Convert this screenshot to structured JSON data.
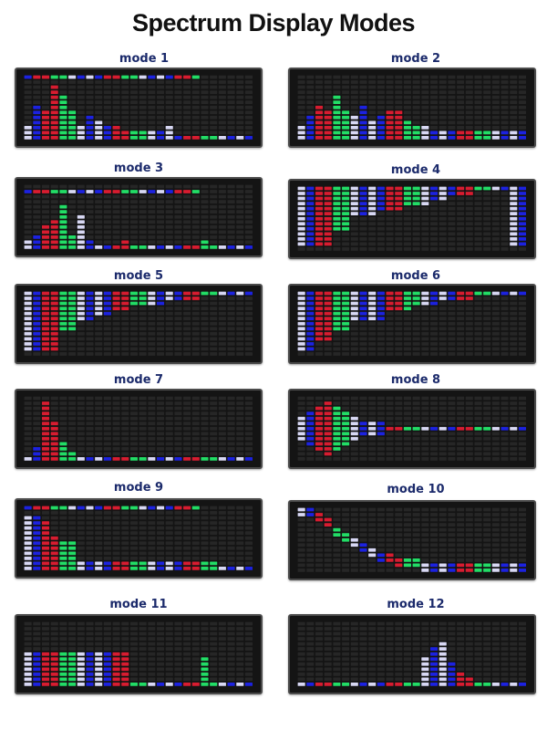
{
  "page": {
    "title": "Spectrum Display Modes"
  },
  "palette": {
    "white": "#d8d8f4",
    "blue": "#1c22e0",
    "red": "#d81c30",
    "green": "#22dd66",
    "off": "#262626"
  },
  "panels": [
    {
      "label": "mode 1",
      "style": "bars",
      "heights": [
        3,
        7,
        6,
        11,
        9,
        6,
        3,
        5,
        4,
        3,
        3,
        2,
        2,
        2,
        2,
        2,
        3,
        1,
        1,
        1,
        1,
        1,
        1,
        1,
        1,
        1
      ],
      "peak_row": 12
    },
    {
      "label": "mode 2",
      "style": "bars_with_row",
      "heights": [
        3,
        5,
        7,
        6,
        9,
        6,
        5,
        7,
        4,
        5,
        6,
        6,
        4,
        3,
        3,
        2,
        2,
        2,
        1,
        1,
        1,
        1,
        1,
        1,
        1,
        1
      ],
      "row_level": 1
    },
    {
      "label": "mode 3",
      "style": "bars",
      "heights": [
        2,
        3,
        5,
        6,
        9,
        3,
        7,
        2,
        1,
        1,
        1,
        2,
        1,
        1,
        1,
        1,
        1,
        1,
        1,
        1,
        2,
        1,
        1,
        1,
        1,
        1
      ],
      "peak_row": 11
    },
    {
      "label": "mode 4",
      "style": "mirror",
      "heights": [
        12,
        12,
        12,
        12,
        9,
        9,
        6,
        6,
        6,
        5,
        5,
        5,
        4,
        4,
        4,
        3,
        3,
        2,
        2,
        2,
        1,
        1,
        1,
        1,
        12,
        12
      ]
    },
    {
      "label": "mode 5",
      "style": "mirror",
      "heights": [
        12,
        12,
        12,
        12,
        8,
        8,
        6,
        6,
        5,
        5,
        4,
        4,
        3,
        3,
        3,
        3,
        2,
        2,
        2,
        2,
        1,
        1,
        1,
        1,
        1,
        1
      ]
    },
    {
      "label": "mode 6",
      "style": "mirror",
      "heights": [
        12,
        12,
        10,
        10,
        8,
        8,
        6,
        6,
        6,
        6,
        4,
        4,
        4,
        3,
        3,
        3,
        2,
        2,
        2,
        2,
        1,
        1,
        1,
        1,
        1,
        1
      ]
    },
    {
      "label": "mode 7",
      "style": "bars",
      "heights": [
        1,
        3,
        12,
        8,
        4,
        2,
        1,
        1,
        1,
        1,
        1,
        1,
        1,
        1,
        1,
        1,
        1,
        1,
        1,
        1,
        1,
        1,
        1,
        1,
        1,
        1
      ],
      "peak_row": 0
    },
    {
      "label": "mode 8",
      "style": "center",
      "heights": [
        5,
        8,
        10,
        11,
        9,
        7,
        5,
        4,
        3,
        3,
        2,
        2,
        1,
        1,
        1,
        1,
        1,
        1,
        1,
        1,
        1,
        1,
        1,
        1,
        1,
        1
      ]
    },
    {
      "label": "mode 9",
      "style": "bars",
      "heights": [
        11,
        11,
        10,
        7,
        6,
        6,
        2,
        2,
        2,
        2,
        2,
        2,
        2,
        2,
        2,
        2,
        2,
        2,
        2,
        2,
        2,
        2,
        1,
        1,
        1,
        1
      ],
      "peak_row": 12
    },
    {
      "label": "mode 10",
      "style": "trace",
      "heights": [
        12,
        12,
        11,
        10,
        8,
        7,
        6,
        5,
        4,
        3,
        3,
        2,
        2,
        2,
        1,
        1,
        1,
        1,
        1,
        1,
        1,
        1,
        1,
        1,
        1,
        1
      ]
    },
    {
      "label": "mode 11",
      "style": "bars",
      "heights": [
        7,
        7,
        7,
        7,
        7,
        7,
        7,
        7,
        7,
        7,
        7,
        7,
        1,
        1,
        1,
        1,
        1,
        1,
        1,
        1,
        6,
        1,
        1,
        1,
        1,
        1
      ],
      "peak_row": 0
    },
    {
      "label": "mode 12",
      "style": "bars",
      "heights": [
        1,
        1,
        1,
        1,
        1,
        1,
        1,
        1,
        1,
        1,
        1,
        1,
        1,
        1,
        6,
        8,
        9,
        5,
        3,
        2,
        1,
        1,
        1,
        1,
        1,
        1
      ],
      "peak_row": 0
    }
  ]
}
